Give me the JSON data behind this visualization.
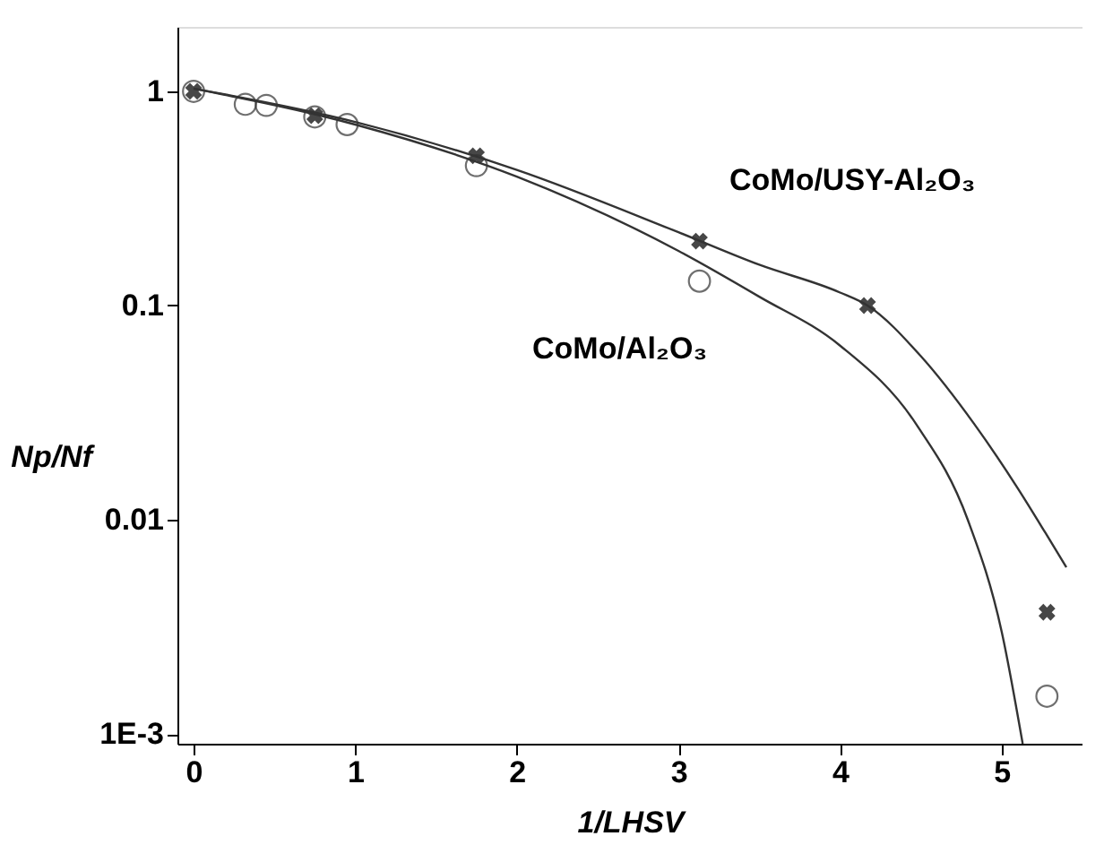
{
  "chart_data": {
    "type": "scatter",
    "xlabel": "1/LHSV",
    "ylabel": "Np/Nf",
    "log": "y",
    "grid": false,
    "legend": false,
    "xlim": [
      -0.1,
      5.5
    ],
    "xticks": [
      0,
      1,
      2,
      3,
      4,
      5
    ],
    "ylim": [
      0.0009,
      2
    ],
    "yticks": [
      1,
      0.1,
      0.01,
      {
        "value": 0.001,
        "label": "1E-3"
      }
    ],
    "series": [
      {
        "name": "CoMo/USY-Al₂O₃",
        "marker": "cross",
        "color": "#333333",
        "x": [
          0,
          0.75,
          1.75,
          3.13,
          4.17,
          5.28
        ],
        "values": [
          1,
          0.77,
          0.5,
          0.2,
          0.1,
          0.0037
        ]
      },
      {
        "name": "CoMo/Al₂O₃",
        "marker": "circle",
        "color": "#333333",
        "x": [
          0,
          0.32,
          0.45,
          0.75,
          0.95,
          1.75,
          3.13,
          5.28
        ],
        "values": [
          1,
          0.87,
          0.86,
          0.76,
          0.7,
          0.45,
          0.13,
          0.0015
        ]
      },
      {
        "type": "line",
        "line_style": "solid",
        "color": "#333333",
        "x": [
          0,
          1,
          2,
          3,
          3.5,
          4,
          4.17,
          4.5,
          4.83,
          5.1,
          5.27,
          5.4
        ],
        "values": [
          1.03,
          0.72,
          0.43,
          0.22,
          0.155,
          0.115,
          0.1,
          0.058,
          0.028,
          0.014,
          0.0087,
          0.006
        ]
      },
      {
        "type": "line",
        "line_style": "solid",
        "color": "#333333",
        "x": [
          0,
          1,
          2,
          3,
          3.5,
          4,
          4.47,
          4.79,
          5,
          5.13
        ],
        "values": [
          1.03,
          0.7,
          0.4,
          0.18,
          0.11,
          0.065,
          0.028,
          0.01,
          0.003,
          0.0009
        ]
      }
    ]
  }
}
